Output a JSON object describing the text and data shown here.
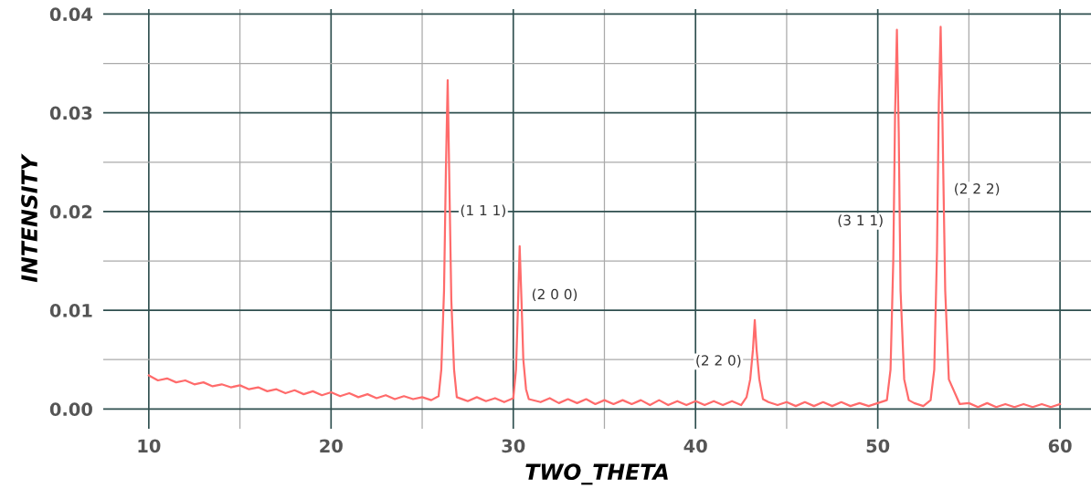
{
  "chart_data": {
    "type": "line",
    "xlabel": "TWO_THETA",
    "ylabel": "INTENSITY",
    "xlim": [
      7.5,
      61.7
    ],
    "ylim": [
      -0.002,
      0.0405
    ],
    "xticks": [
      10,
      {
        "value": 15,
        "label": null
      },
      20,
      {
        "value": 25,
        "label": null
      },
      30,
      {
        "value": 35,
        "label": null
      },
      40,
      {
        "value": 45,
        "label": null
      },
      50,
      {
        "value": 55,
        "label": null
      },
      60
    ],
    "yticks": [
      {
        "value": 0,
        "label": "0.00"
      },
      {
        "value": 0.005,
        "label": null
      },
      {
        "value": 0.01,
        "label": "0.01"
      },
      {
        "value": 0.015,
        "label": null
      },
      {
        "value": 0.02,
        "label": "0.02"
      },
      {
        "value": 0.025,
        "label": null
      },
      {
        "value": 0.03,
        "label": "0.03"
      },
      {
        "value": 0.035,
        "label": null
      },
      {
        "value": 0.04,
        "label": "0.04"
      }
    ],
    "grid": true,
    "legend": false,
    "marker": "none",
    "line_style": "solid",
    "series": [
      {
        "color": "#ff6b6b",
        "x": [
          10,
          10.5,
          11,
          11.5,
          12,
          12.5,
          13,
          13.5,
          14,
          14.5,
          15,
          15.5,
          16,
          16.5,
          17,
          17.5,
          18,
          18.5,
          19,
          19.5,
          20,
          20.5,
          21,
          21.5,
          22,
          22.5,
          23,
          23.5,
          24,
          24.5,
          25,
          25.5,
          25.9,
          26.05,
          26.2,
          26.3,
          26.4,
          26.5,
          26.6,
          26.75,
          26.9,
          27.5,
          28,
          28.5,
          29,
          29.5,
          30,
          30.15,
          30.25,
          30.35,
          30.45,
          30.55,
          30.7,
          30.85,
          31.5,
          32,
          32.5,
          33,
          33.5,
          34,
          34.5,
          35,
          35.5,
          36,
          36.5,
          37,
          37.5,
          38,
          38.5,
          39,
          39.5,
          40,
          40.5,
          41,
          41.5,
          42,
          42.5,
          42.8,
          43.0,
          43.15,
          43.25,
          43.35,
          43.5,
          43.7,
          44,
          44.5,
          45,
          45.5,
          46,
          46.5,
          47,
          47.5,
          48,
          48.5,
          49,
          49.5,
          50,
          50.5,
          50.7,
          50.85,
          50.95,
          51.05,
          51.15,
          51.25,
          51.45,
          51.7,
          52,
          52.5,
          52.9,
          53.1,
          53.25,
          53.35,
          53.45,
          53.55,
          53.7,
          53.9,
          54.5,
          55,
          55.5,
          56,
          56.5,
          57,
          57.5,
          58,
          58.5,
          59,
          59.5,
          60
        ],
        "values": [
          0.0034,
          0.0029,
          0.0031,
          0.0027,
          0.0029,
          0.0025,
          0.0027,
          0.0023,
          0.0025,
          0.0022,
          0.0024,
          0.002,
          0.0022,
          0.0018,
          0.002,
          0.0016,
          0.0019,
          0.0015,
          0.0018,
          0.0014,
          0.0017,
          0.0013,
          0.0016,
          0.0012,
          0.0015,
          0.0011,
          0.0014,
          0.001,
          0.0013,
          0.001,
          0.0012,
          0.0009,
          0.0013,
          0.004,
          0.012,
          0.024,
          0.0333,
          0.022,
          0.011,
          0.004,
          0.0012,
          0.0008,
          0.0012,
          0.0008,
          0.0011,
          0.0007,
          0.0011,
          0.004,
          0.01,
          0.0165,
          0.011,
          0.005,
          0.002,
          0.001,
          0.0007,
          0.0011,
          0.0006,
          0.001,
          0.0006,
          0.001,
          0.0005,
          0.0009,
          0.0005,
          0.0009,
          0.0005,
          0.0009,
          0.0004,
          0.0009,
          0.0004,
          0.0008,
          0.0004,
          0.0008,
          0.0004,
          0.0008,
          0.0004,
          0.0008,
          0.0004,
          0.0012,
          0.003,
          0.006,
          0.009,
          0.006,
          0.003,
          0.001,
          0.0007,
          0.0004,
          0.0007,
          0.0003,
          0.0007,
          0.0003,
          0.0007,
          0.0003,
          0.0007,
          0.0003,
          0.0006,
          0.0003,
          0.0006,
          0.0009,
          0.004,
          0.015,
          0.03,
          0.0384,
          0.028,
          0.012,
          0.003,
          0.0009,
          0.0006,
          0.0003,
          0.0009,
          0.004,
          0.016,
          0.031,
          0.0387,
          0.029,
          0.012,
          0.003,
          0.0005,
          0.0006,
          0.0002,
          0.0006,
          0.0002,
          0.0005,
          0.0002,
          0.0005,
          0.0002,
          0.0005,
          0.0002,
          0.0005
        ]
      }
    ],
    "annotations": [
      {
        "text": "(1 1 1)",
        "x": 26.52,
        "y": 0.02
      },
      {
        "text": "(2 0 0)",
        "x": 30.44,
        "y": 0.0115
      },
      {
        "text": "(2 2 0)",
        "x": 43.09,
        "y": 0.0048
      },
      {
        "text": "(3 1 1)",
        "x": 50.88,
        "y": 0.019
      },
      {
        "text": "(2 2 2)",
        "x": 53.61,
        "y": 0.0222
      }
    ]
  }
}
